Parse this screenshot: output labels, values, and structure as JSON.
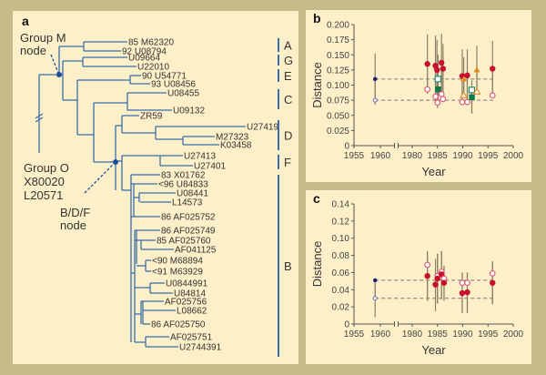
{
  "colors": {
    "frame": "#c8bb8a",
    "panel_bg": "#fdefc8",
    "tree_line": "#3a6ea8",
    "node_dot": "#1a4e9c",
    "errbar": "#8a8266",
    "dashed": "#777777",
    "red": "#c8102e",
    "pink_open": "#e0607a",
    "orange": "#e08a20",
    "green": "#0a7a4a",
    "teal_open": "#2a8a7a",
    "navy": "#1a1a6e",
    "purple_open": "#7a6ab8"
  },
  "panel_a": {
    "letter": "a",
    "group_m_label": [
      "Group M",
      "node"
    ],
    "group_o_label": [
      "Group O",
      "X80020",
      "L20571"
    ],
    "bdf_label": [
      "B/D/F",
      "node"
    ],
    "taxa": [
      {
        "label": "85 M62320"
      },
      {
        "label": "92 U08794"
      },
      {
        "label": "U09664"
      },
      {
        "label": "U22010"
      },
      {
        "label": "90 U54771"
      },
      {
        "label": "93 U08456"
      },
      {
        "label": "U08455"
      },
      {
        "label": "U09132"
      },
      {
        "label": "ZR59"
      },
      {
        "label": "U27419"
      },
      {
        "label": "M27323"
      },
      {
        "label": "K03458"
      },
      {
        "label": "U27413"
      },
      {
        "label": "U27401"
      },
      {
        "label": "83 X01762"
      },
      {
        "label": "<96 U84833"
      },
      {
        "label": "U08441"
      },
      {
        "label": "L14573"
      },
      {
        "label": "86 AF025752"
      },
      {
        "label": "86 AF025749"
      },
      {
        "label": "85 AF025760"
      },
      {
        "label": "AF041125"
      },
      {
        "label": "<90 M68894"
      },
      {
        "label": "<91 M63929"
      },
      {
        "label": "U0844991"
      },
      {
        "label": "U84814"
      },
      {
        "label": "AF025756"
      },
      {
        "label": "L08662"
      },
      {
        "label": "86 AF025750"
      },
      {
        "label": "AF025751"
      },
      {
        "label": "U2744391"
      }
    ],
    "subtypes": [
      "A",
      "G",
      "E",
      "C",
      "D",
      "F",
      "B"
    ]
  },
  "chart_data": [
    {
      "type": "scatter",
      "panel_letter": "b",
      "title": "",
      "xlabel": "Year",
      "ylabel": "Distance",
      "xlim": [
        1955,
        2000
      ],
      "x_axis_break": "between 1960 and 1980",
      "xticks": [
        "1955",
        "1960",
        "1980",
        "1985",
        "1990",
        "1995",
        "2000"
      ],
      "ylim": [
        0,
        0.2
      ],
      "yticks": [
        "0",
        "0.025",
        "0.050",
        "0.075",
        "0.100",
        "0.125",
        "0.150",
        "0.175",
        "0.200"
      ],
      "reference_lines": [
        {
          "y": 0.11,
          "x_from": 1959,
          "x_to": 1996,
          "style": "dashed"
        },
        {
          "y": 0.075,
          "x_from": 1959,
          "x_to": 1996,
          "style": "dashed"
        }
      ],
      "points": [
        {
          "x": 1959,
          "y": 0.11,
          "lo": 0.068,
          "hi": 0.152,
          "marker": "filled-circle-small",
          "color": "navy"
        },
        {
          "x": 1959,
          "y": 0.075,
          "lo": 0.068,
          "hi": 0.11,
          "marker": "open-circle-small",
          "color": "purple_open"
        },
        {
          "x": 1983,
          "y": 0.135,
          "lo": 0.086,
          "hi": 0.184,
          "marker": "filled-circle",
          "color": "red"
        },
        {
          "x": 1983,
          "y": 0.093,
          "lo": 0.086,
          "hi": 0.135,
          "marker": "open-circle",
          "color": "pink_open"
        },
        {
          "x": 1984.6,
          "y": 0.132,
          "lo": 0.08,
          "hi": 0.182,
          "marker": "filled-circle",
          "color": "red"
        },
        {
          "x": 1984.6,
          "y": 0.081,
          "lo": 0.075,
          "hi": 0.132,
          "marker": "open-circle",
          "color": "pink_open"
        },
        {
          "x": 1984.9,
          "y": 0.125,
          "lo": 0.075,
          "hi": 0.175,
          "marker": "filled-circle",
          "color": "red"
        },
        {
          "x": 1985,
          "y": 0.071,
          "lo": 0.062,
          "hi": 0.125,
          "marker": "open-circle",
          "color": "pink_open"
        },
        {
          "x": 1985.1,
          "y": 0.11,
          "lo": 0.07,
          "hi": 0.15,
          "marker": "open-square",
          "color": "teal_open"
        },
        {
          "x": 1985.1,
          "y": 0.093,
          "lo": 0.07,
          "hi": 0.11,
          "marker": "filled-square",
          "color": "green"
        },
        {
          "x": 1985.8,
          "y": 0.137,
          "lo": 0.09,
          "hi": 0.185,
          "marker": "filled-circle",
          "color": "red"
        },
        {
          "x": 1985.8,
          "y": 0.085,
          "lo": 0.08,
          "hi": 0.137,
          "marker": "open-circle",
          "color": "pink_open"
        },
        {
          "x": 1986.1,
          "y": 0.127,
          "lo": 0.078,
          "hi": 0.168,
          "marker": "filled-circle",
          "color": "red"
        },
        {
          "x": 1986.1,
          "y": 0.077,
          "lo": 0.074,
          "hi": 0.127,
          "marker": "open-circle",
          "color": "pink_open"
        },
        {
          "x": 1989.9,
          "y": 0.115,
          "lo": 0.072,
          "hi": 0.159,
          "marker": "filled-circle",
          "color": "red"
        },
        {
          "x": 1989.9,
          "y": 0.072,
          "lo": 0.068,
          "hi": 0.115,
          "marker": "open-circle",
          "color": "pink_open"
        },
        {
          "x": 1990.2,
          "y": 0.11,
          "lo": 0.08,
          "hi": 0.146,
          "marker": "filled-triangle",
          "color": "orange"
        },
        {
          "x": 1990.2,
          "y": 0.083,
          "lo": 0.08,
          "hi": 0.11,
          "marker": "open-triangle",
          "color": "orange"
        },
        {
          "x": 1990.9,
          "y": 0.116,
          "lo": 0.072,
          "hi": 0.159,
          "marker": "filled-circle",
          "color": "red"
        },
        {
          "x": 1990.9,
          "y": 0.072,
          "lo": 0.068,
          "hi": 0.116,
          "marker": "open-circle",
          "color": "pink_open"
        },
        {
          "x": 1991.8,
          "y": 0.092,
          "lo": 0.053,
          "hi": 0.108,
          "marker": "open-square",
          "color": "teal_open"
        },
        {
          "x": 1991.8,
          "y": 0.08,
          "lo": 0.053,
          "hi": 0.092,
          "marker": "filled-square",
          "color": "green"
        },
        {
          "x": 1992.8,
          "y": 0.125,
          "lo": 0.086,
          "hi": 0.165,
          "marker": "filled-triangle",
          "color": "orange"
        },
        {
          "x": 1992.8,
          "y": 0.089,
          "lo": 0.086,
          "hi": 0.125,
          "marker": "open-triangle",
          "color": "orange"
        },
        {
          "x": 1995.9,
          "y": 0.127,
          "lo": 0.083,
          "hi": 0.173,
          "marker": "filled-circle",
          "color": "red"
        },
        {
          "x": 1995.9,
          "y": 0.083,
          "lo": 0.08,
          "hi": 0.127,
          "marker": "open-circle",
          "color": "pink_open"
        }
      ]
    },
    {
      "type": "scatter",
      "panel_letter": "c",
      "title": "",
      "xlabel": "Year",
      "ylabel": "Distance",
      "xlim": [
        1955,
        2000
      ],
      "x_axis_break": "between 1960 and 1980",
      "xticks": [
        "1955",
        "1960",
        "1980",
        "1985",
        "1990",
        "1995",
        "2000"
      ],
      "ylim": [
        0,
        0.14
      ],
      "yticks": [
        "0",
        "0.02",
        "0.04",
        "0.06",
        "0.08",
        "0.10",
        "0.12",
        "0.14"
      ],
      "reference_lines": [
        {
          "y": 0.051,
          "x_from": 1959,
          "x_to": 1996,
          "style": "dashed"
        },
        {
          "y": 0.03,
          "x_from": 1959,
          "x_to": 1996,
          "style": "dashed"
        }
      ],
      "points": [
        {
          "x": 1959,
          "y": 0.051,
          "lo": 0.03,
          "hi": 0.051,
          "marker": "filled-circle-small",
          "color": "navy"
        },
        {
          "x": 1959,
          "y": 0.03,
          "lo": 0.008,
          "hi": 0.051,
          "marker": "open-circle-small",
          "color": "purple_open"
        },
        {
          "x": 1983,
          "y": 0.069,
          "lo": 0.027,
          "hi": 0.085,
          "marker": "open-circle",
          "color": "pink_open"
        },
        {
          "x": 1983,
          "y": 0.056,
          "lo": 0.027,
          "hi": 0.085,
          "marker": "filled-circle",
          "color": "red"
        },
        {
          "x": 1984.6,
          "y": 0.046,
          "lo": 0.015,
          "hi": 0.076,
          "marker": "filled-circle",
          "color": "red"
        },
        {
          "x": 1985,
          "y": 0.056,
          "lo": 0.024,
          "hi": 0.082,
          "marker": "open-circle",
          "color": "pink_open"
        },
        {
          "x": 1985,
          "y": 0.053,
          "lo": 0.024,
          "hi": 0.082,
          "marker": "filled-circle",
          "color": "red"
        },
        {
          "x": 1985.8,
          "y": 0.061,
          "lo": 0.029,
          "hi": 0.085,
          "marker": "open-circle",
          "color": "pink_open"
        },
        {
          "x": 1985.8,
          "y": 0.058,
          "lo": 0.029,
          "hi": 0.085,
          "marker": "filled-circle",
          "color": "red"
        },
        {
          "x": 1986.3,
          "y": 0.053,
          "lo": 0.027,
          "hi": 0.068,
          "marker": "open-circle",
          "color": "pink_open"
        },
        {
          "x": 1986.3,
          "y": 0.048,
          "lo": 0.027,
          "hi": 0.068,
          "marker": "filled-circle",
          "color": "red"
        },
        {
          "x": 1989.9,
          "y": 0.048,
          "lo": 0.013,
          "hi": 0.06,
          "marker": "open-circle",
          "color": "pink_open"
        },
        {
          "x": 1989.9,
          "y": 0.036,
          "lo": 0.013,
          "hi": 0.06,
          "marker": "filled-circle",
          "color": "red"
        },
        {
          "x": 1990.9,
          "y": 0.048,
          "lo": 0.013,
          "hi": 0.06,
          "marker": "open-circle",
          "color": "pink_open"
        },
        {
          "x": 1990.9,
          "y": 0.037,
          "lo": 0.013,
          "hi": 0.06,
          "marker": "filled-circle",
          "color": "red"
        },
        {
          "x": 1995.9,
          "y": 0.059,
          "lo": 0.023,
          "hi": 0.073,
          "marker": "open-circle",
          "color": "pink_open"
        },
        {
          "x": 1995.9,
          "y": 0.048,
          "lo": 0.023,
          "hi": 0.073,
          "marker": "filled-circle",
          "color": "red"
        }
      ]
    }
  ]
}
